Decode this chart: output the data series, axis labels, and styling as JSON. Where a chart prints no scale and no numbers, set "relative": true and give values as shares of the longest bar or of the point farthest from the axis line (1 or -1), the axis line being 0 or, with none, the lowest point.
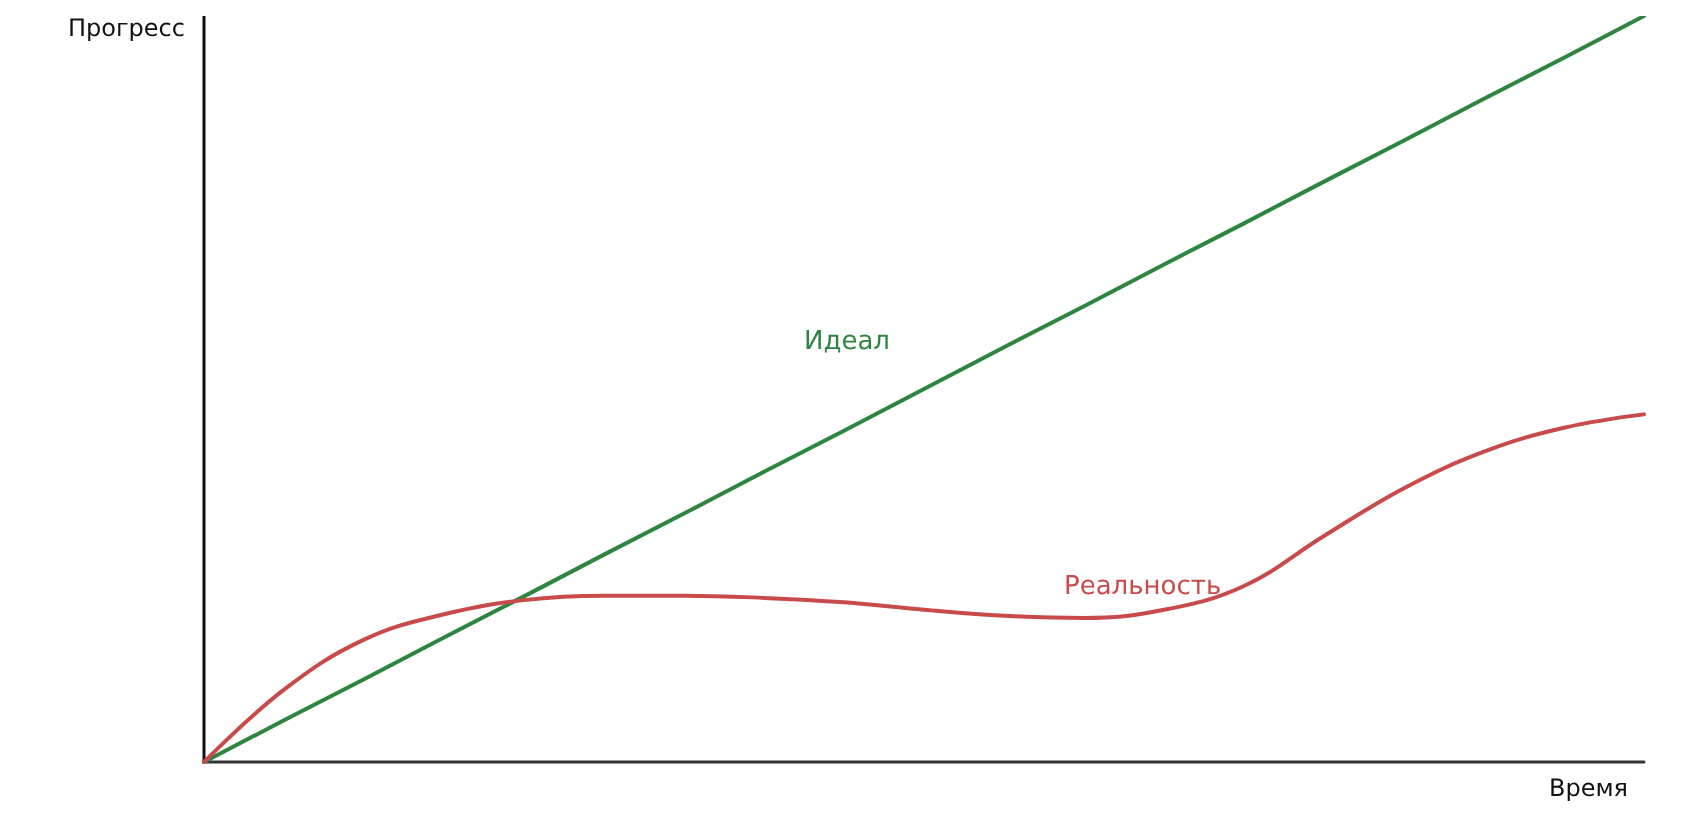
{
  "chart_data": {
    "type": "line",
    "relative": true,
    "xlabel": "Время",
    "ylabel": "Прогресс",
    "grid": false,
    "legend": false,
    "marker": "none",
    "line_style": "solid",
    "categories": [
      null,
      null,
      null,
      null,
      null,
      null,
      null,
      null,
      null,
      null,
      null,
      null,
      null,
      null,
      null,
      null,
      null,
      null,
      null
    ],
    "series": [
      {
        "name": "Идеал",
        "color": "#2e8540",
        "values": [
          0,
          0.056,
          0.111,
          0.167,
          0.222,
          0.278,
          0.333,
          0.389,
          0.444,
          0.5,
          0.556,
          0.611,
          0.667,
          0.722,
          0.778,
          0.833,
          0.889,
          0.944,
          1
        ]
      },
      {
        "name": "Реальность",
        "color": "#c94a4a",
        "values": [
          0,
          0.097,
          0.164,
          0.198,
          0.217,
          0.223,
          0.223,
          0.22,
          0.214,
          0.204,
          0.196,
          0.193,
          0.204,
          0.236,
          0.303,
          0.367,
          0.416,
          0.448,
          0.466
        ]
      }
    ]
  }
}
